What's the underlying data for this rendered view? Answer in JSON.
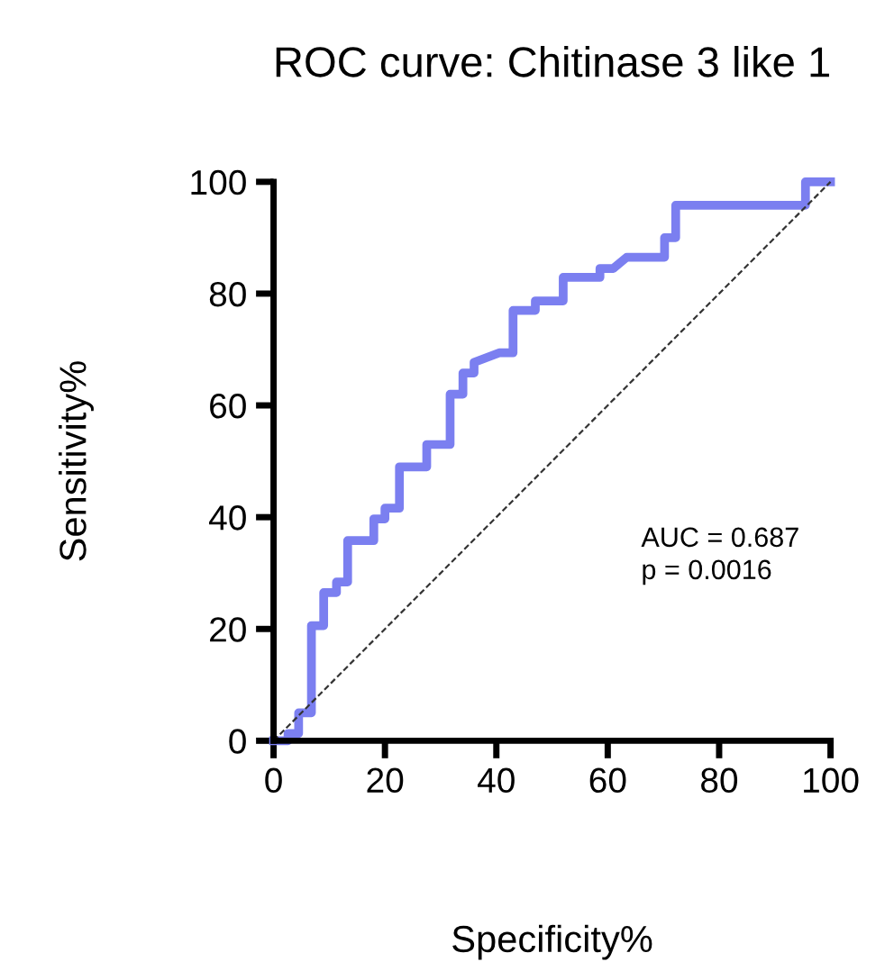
{
  "chart_data": {
    "type": "line",
    "title": "ROC curve: Chitinase 3 like 1",
    "xlabel": "Specificity%",
    "ylabel": "Sensitivity%",
    "xlim": [
      0,
      100
    ],
    "ylim": [
      0,
      100
    ],
    "xticks": [
      0,
      20,
      40,
      60,
      80,
      100
    ],
    "yticks": [
      0,
      20,
      40,
      60,
      80,
      100
    ],
    "grid": false,
    "legend": false,
    "marker": "none",
    "series": [
      {
        "color": "#7b7ff0",
        "line_style": "solid",
        "x": [
          0,
          2.6,
          2.6,
          4.5,
          4.5,
          6.8,
          6.8,
          9,
          9,
          11.3,
          11.3,
          13.3,
          13.3,
          18,
          18,
          20,
          20,
          22.6,
          22.6,
          27.5,
          27.5,
          31.7,
          31.7,
          34,
          34,
          36,
          36,
          40.5,
          43,
          43,
          47,
          47,
          52,
          52,
          58.6,
          58.6,
          61,
          63.4,
          70.2,
          70.2,
          72.2,
          72.2,
          95.5,
          95.5,
          100
        ],
        "values": [
          0,
          0,
          1.3,
          1.3,
          5,
          5,
          20.6,
          20.6,
          26.5,
          26.5,
          28.4,
          28.4,
          35.8,
          35.8,
          39.7,
          39.7,
          41.6,
          41.6,
          49,
          49,
          53,
          53,
          62,
          62,
          65.8,
          65.8,
          67.7,
          69.4,
          69.4,
          77,
          77,
          78.7,
          78.7,
          82.9,
          82.9,
          84.5,
          84.5,
          86.5,
          86.5,
          90,
          90,
          95.8,
          95.8,
          100,
          100
        ]
      },
      {
        "color": "#333333",
        "line_style": "dashed",
        "x": [
          0,
          100
        ],
        "values": [
          0,
          100
        ]
      }
    ],
    "annotations": [
      "AUC = 0.687",
      "p = 0.0016"
    ]
  }
}
